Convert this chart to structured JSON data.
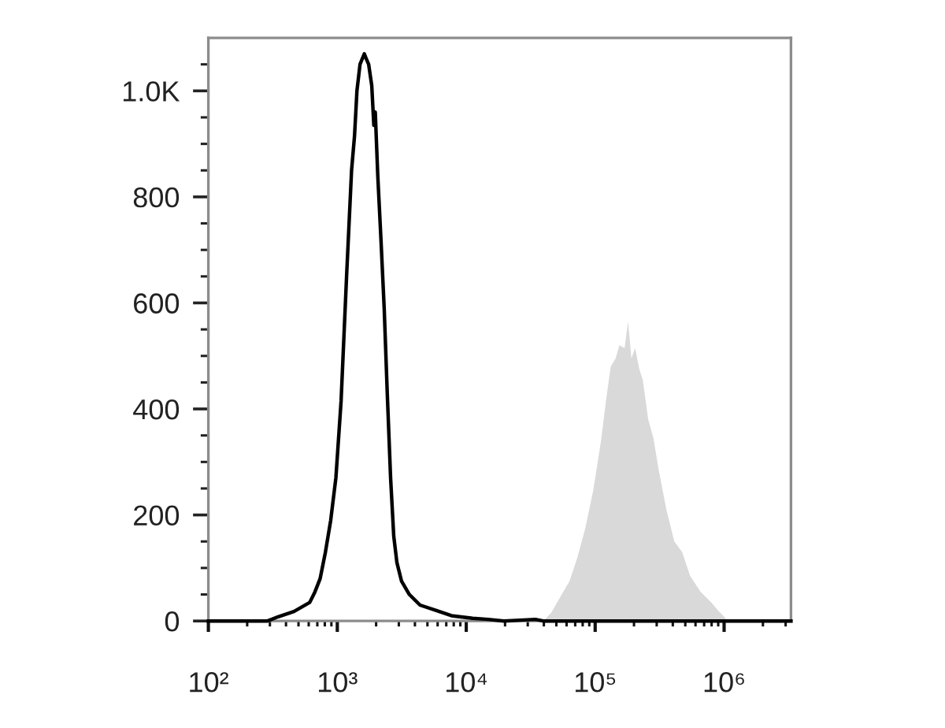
{
  "chart_data": {
    "type": "line",
    "log": "x",
    "xlim": [
      100,
      3300000
    ],
    "ylim": [
      0,
      1100
    ],
    "xticks": [
      {
        "value": 100,
        "label": "10²"
      },
      {
        "value": 200,
        "label": null
      },
      {
        "value": 300,
        "label": null
      },
      {
        "value": 400,
        "label": null
      },
      {
        "value": 500,
        "label": null
      },
      {
        "value": 600,
        "label": null
      },
      {
        "value": 700,
        "label": null
      },
      {
        "value": 800,
        "label": null
      },
      {
        "value": 900,
        "label": null
      },
      {
        "value": 1000,
        "label": "10³"
      },
      {
        "value": 2000,
        "label": null
      },
      {
        "value": 3000,
        "label": null
      },
      {
        "value": 4000,
        "label": null
      },
      {
        "value": 5000,
        "label": null
      },
      {
        "value": 6000,
        "label": null
      },
      {
        "value": 7000,
        "label": null
      },
      {
        "value": 8000,
        "label": null
      },
      {
        "value": 9000,
        "label": null
      },
      {
        "value": 10000,
        "label": "10⁴"
      },
      {
        "value": 20000,
        "label": null
      },
      {
        "value": 30000,
        "label": null
      },
      {
        "value": 40000,
        "label": null
      },
      {
        "value": 50000,
        "label": null
      },
      {
        "value": 60000,
        "label": null
      },
      {
        "value": 70000,
        "label": null
      },
      {
        "value": 80000,
        "label": null
      },
      {
        "value": 90000,
        "label": null
      },
      {
        "value": 100000,
        "label": "10⁵"
      },
      {
        "value": 200000,
        "label": null
      },
      {
        "value": 300000,
        "label": null
      },
      {
        "value": 400000,
        "label": null
      },
      {
        "value": 500000,
        "label": null
      },
      {
        "value": 600000,
        "label": null
      },
      {
        "value": 700000,
        "label": null
      },
      {
        "value": 800000,
        "label": null
      },
      {
        "value": 900000,
        "label": null
      },
      {
        "value": 1000000,
        "label": "10⁶"
      },
      {
        "value": 2000000,
        "label": null
      },
      {
        "value": 3000000,
        "label": null
      }
    ],
    "yticks": [
      0,
      {
        "value": 50,
        "label": null
      },
      {
        "value": 100,
        "label": null
      },
      {
        "value": 150,
        "label": null
      },
      200,
      {
        "value": 250,
        "label": null
      },
      {
        "value": 300,
        "label": null
      },
      {
        "value": 350,
        "label": null
      },
      400,
      {
        "value": 450,
        "label": null
      },
      {
        "value": 500,
        "label": null
      },
      {
        "value": 550,
        "label": null
      },
      600,
      {
        "value": 650,
        "label": null
      },
      {
        "value": 700,
        "label": null
      },
      {
        "value": 750,
        "label": null
      },
      800,
      {
        "value": 850,
        "label": null
      },
      {
        "value": 900,
        "label": null
      },
      {
        "value": 950,
        "label": null
      },
      {
        "value": 1000,
        "label": "1.0K"
      },
      {
        "value": 1050,
        "label": null
      }
    ],
    "series": [
      {
        "type": "area",
        "color": "#d9d9d9",
        "x": [
          39500,
          45500,
          55000,
          63200,
          72800,
          83800,
          96400,
          111000,
          122000,
          132000,
          144000,
          154000,
          169000,
          180000,
          191000,
          204000,
          220000,
          234000,
          258000,
          283000,
          311000,
          357000,
          411000,
          473000,
          545000,
          658000,
          794000,
          896000,
          1000000,
          1060000
        ],
        "values": [
          0,
          15,
          50,
          75,
          120,
          175,
          245,
          340,
          420,
          480,
          495,
          520,
          515,
          565,
          495,
          515,
          475,
          455,
          380,
          345,
          285,
          210,
          150,
          130,
          85,
          55,
          35,
          20,
          8,
          0
        ]
      },
      {
        "color": "#000000",
        "x": [
          100,
          288,
          348,
          461,
          611,
          671,
          736,
          809,
          889,
          975,
          1070,
          1180,
          1290,
          1360,
          1420,
          1500,
          1620,
          1680,
          1750,
          1850,
          1920,
          1970,
          2060,
          2180,
          2310,
          2440,
          2590,
          2740,
          2900,
          3150,
          3620,
          4380,
          5800,
          7680,
          11200,
          14800,
          19600,
          34400,
          39500,
          3300000
        ],
        "values": [
          0,
          0,
          8,
          18,
          35,
          55,
          80,
          130,
          190,
          270,
          415,
          650,
          850,
          915,
          1000,
          1050,
          1070,
          1060,
          1050,
          1010,
          935,
          960,
          840,
          720,
          590,
          430,
          270,
          160,
          110,
          75,
          50,
          30,
          20,
          10,
          5,
          3,
          0,
          3,
          0,
          0
        ]
      }
    ]
  }
}
